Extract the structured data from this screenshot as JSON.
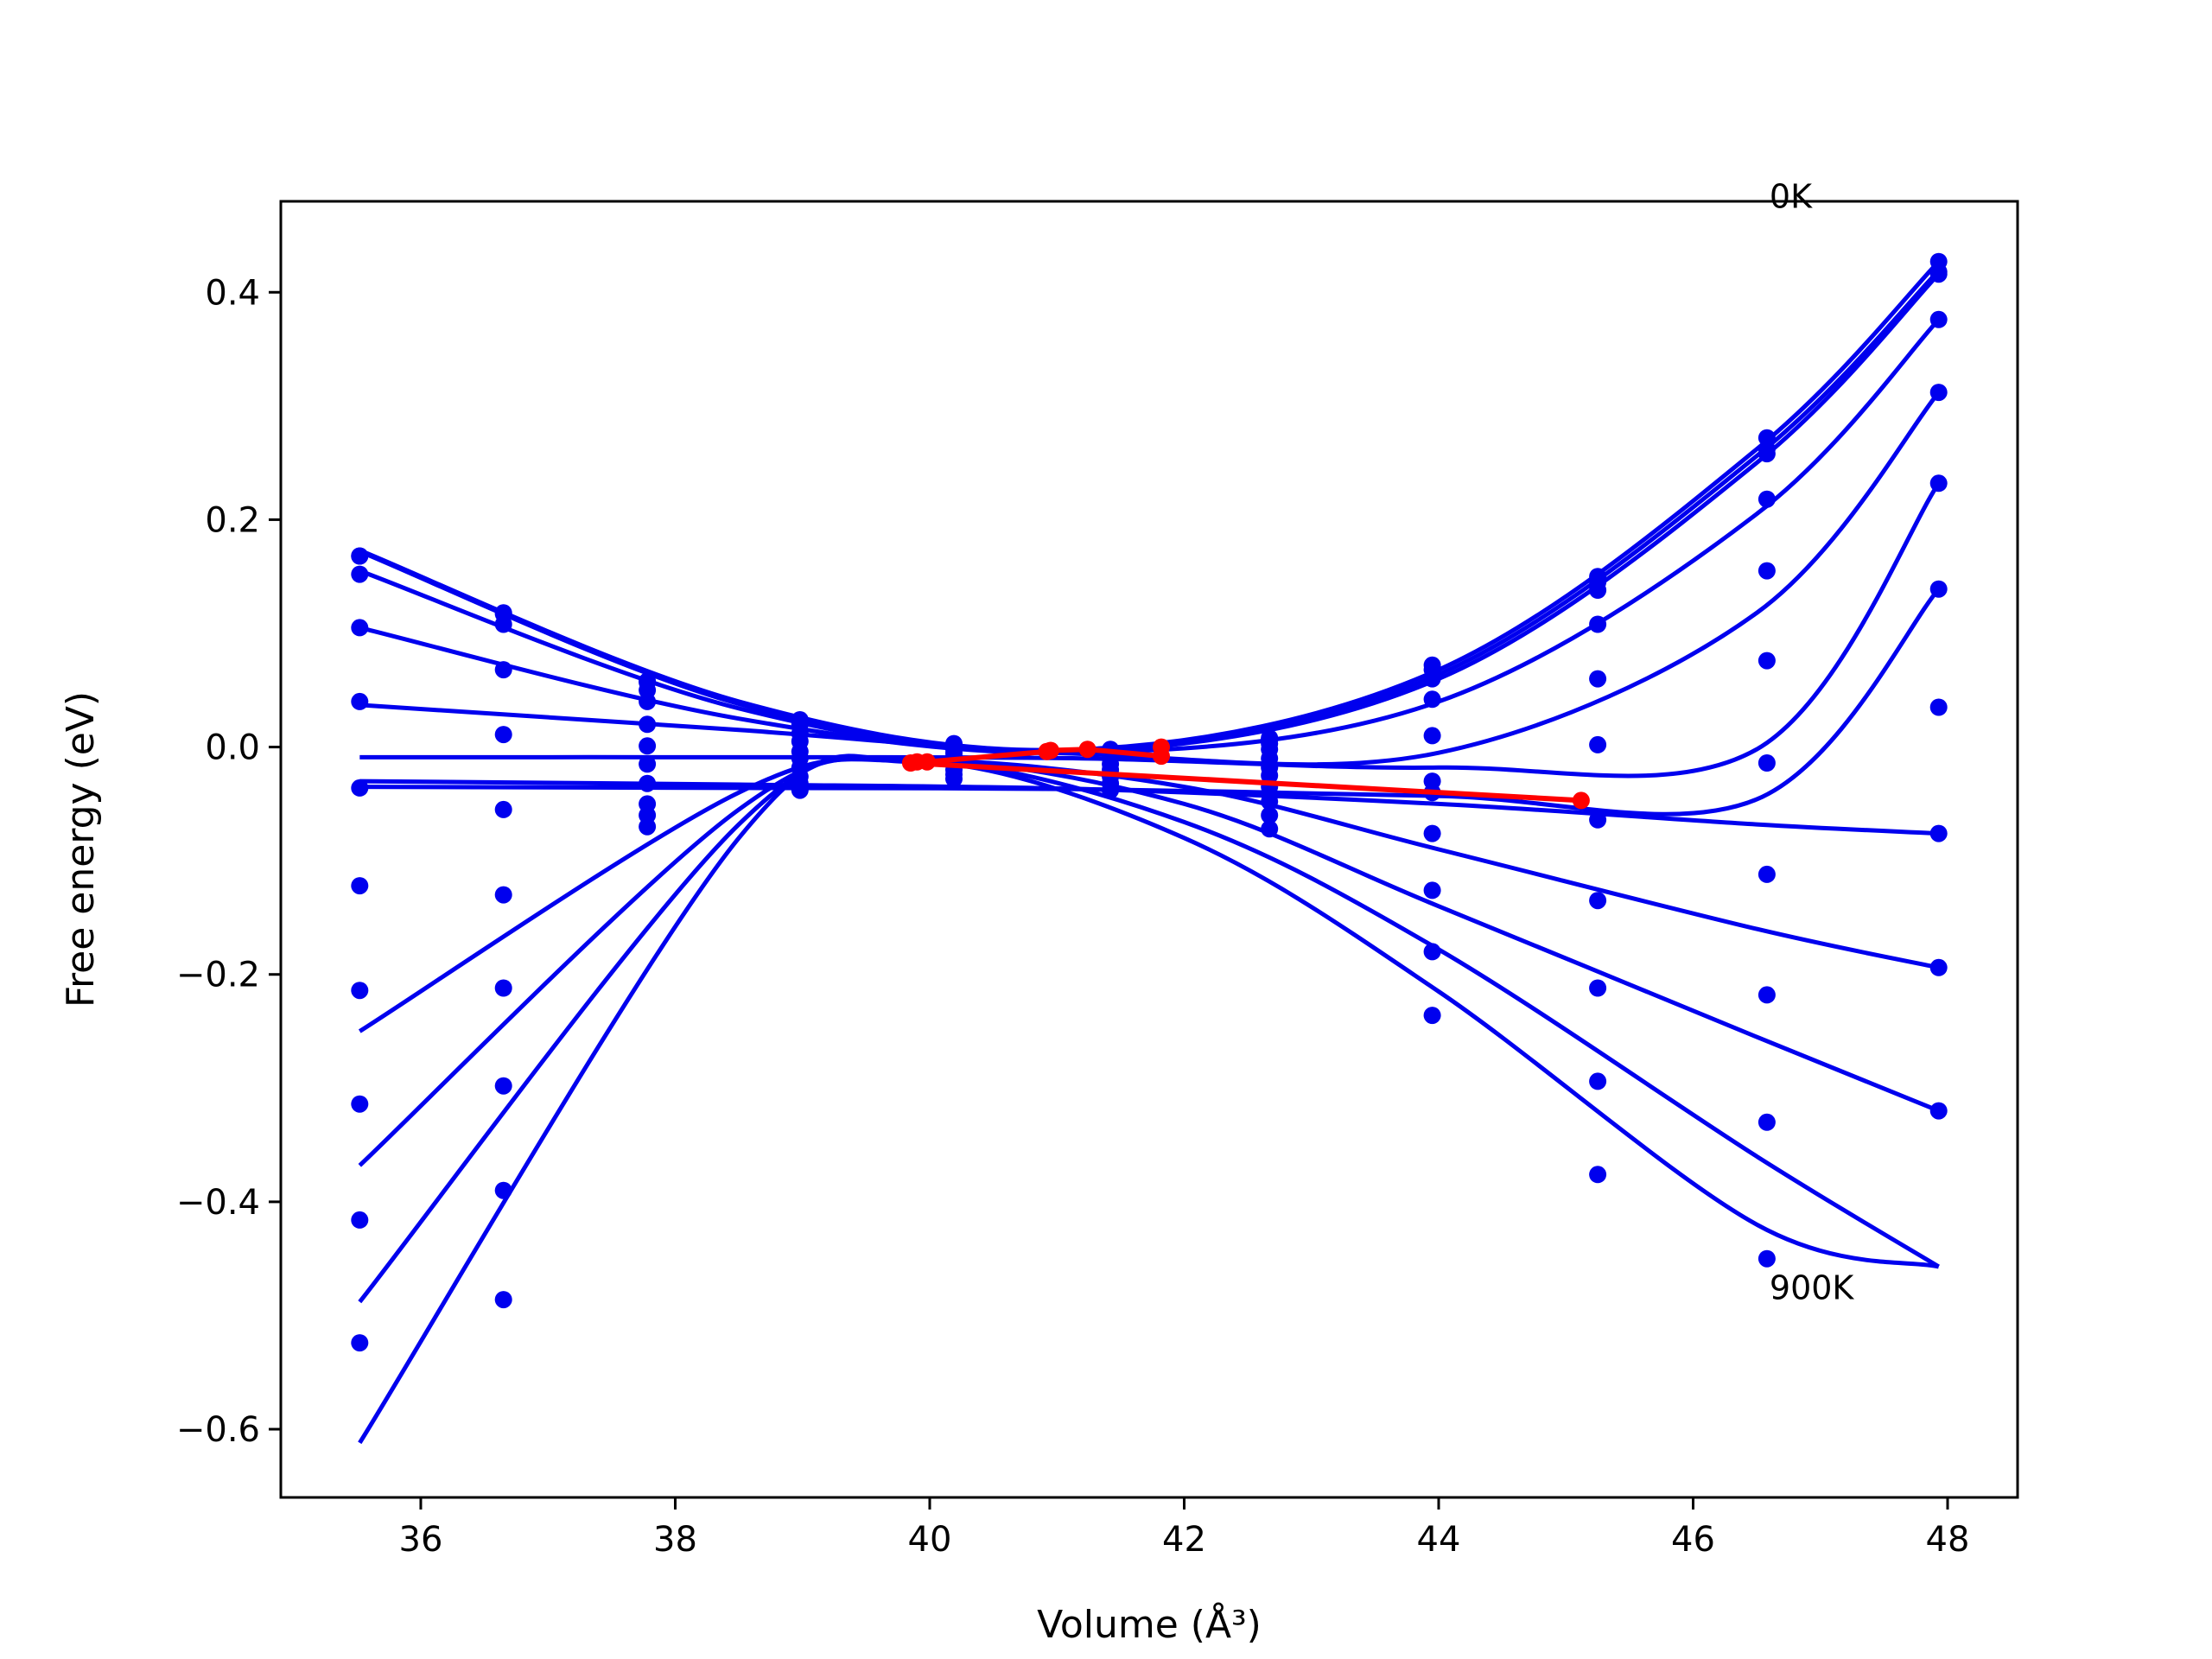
{
  "chart_data": {
    "type": "line",
    "xlabel": "Volume (Å³)",
    "ylabel": "Free energy (eV)",
    "xlim": [
      34.9,
      48.55
    ],
    "ylim": [
      -0.66,
      0.48
    ],
    "xticks": [
      36,
      38,
      40,
      42,
      44,
      46,
      48
    ],
    "yticks": [
      -0.6,
      -0.4,
      -0.2,
      0.0,
      0.2,
      0.4
    ],
    "xtick_labels": [
      "36",
      "38",
      "40",
      "42",
      "44",
      "46",
      "48"
    ],
    "ytick_labels": [
      "−0.6",
      "−0.4",
      "−0.2",
      "0.0",
      "0.2",
      "0.4"
    ],
    "colors": {
      "series": "#0000ee",
      "minimum_path": "#ff0000"
    },
    "annotations": [
      {
        "text": "0K",
        "x": 46.6,
        "y": 0.485
      },
      {
        "text": "900K",
        "x": 46.6,
        "y": -0.475
      }
    ],
    "volumes": [
      35.52,
      36.65,
      37.78,
      38.98,
      40.19,
      41.42,
      42.67,
      43.95,
      45.25,
      46.58,
      47.93
    ],
    "series": [
      {
        "name": "0K",
        "values": [
          0.168,
          0.118,
          0.058,
          0.024,
          0.003,
          -0.002,
          0.008,
          0.072,
          0.15,
          0.272,
          0.427
        ]
      },
      {
        "values": [
          0.168,
          0.117,
          0.057,
          0.023,
          0.002,
          -0.003,
          0.007,
          0.068,
          0.145,
          0.262,
          0.418
        ]
      },
      {
        "values": [
          0.152,
          0.108,
          0.05,
          0.02,
          0.001,
          -0.004,
          0.003,
          0.06,
          0.138,
          0.258,
          0.416
        ]
      },
      {
        "values": [
          0.105,
          0.068,
          0.04,
          0.012,
          -0.002,
          -0.005,
          -0.002,
          0.042,
          0.108,
          0.218,
          0.376
        ]
      },
      {
        "values": [
          0.04,
          0.011,
          0.02,
          0.005,
          -0.005,
          -0.007,
          -0.01,
          0.01,
          0.06,
          0.155,
          0.312
        ]
      },
      {
        "values": [
          -0.036,
          -0.055,
          0.001,
          -0.004,
          -0.008,
          -0.01,
          -0.018,
          -0.03,
          0.002,
          0.076,
          0.232
        ]
      },
      {
        "values": [
          -0.122,
          -0.13,
          -0.015,
          -0.01,
          -0.012,
          -0.015,
          -0.025,
          -0.04,
          -0.064,
          -0.014,
          0.139
        ]
      },
      {
        "values": [
          -0.214,
          -0.212,
          -0.032,
          -0.018,
          -0.015,
          -0.02,
          -0.035,
          -0.076,
          -0.135,
          -0.112,
          0.035
        ]
      },
      {
        "values": [
          -0.314,
          -0.298,
          -0.05,
          -0.026,
          -0.02,
          -0.026,
          -0.048,
          -0.126,
          -0.212,
          -0.218,
          -0.076
        ]
      },
      {
        "values": [
          -0.416,
          -0.39,
          -0.06,
          -0.032,
          -0.024,
          -0.032,
          -0.06,
          -0.18,
          -0.294,
          -0.33,
          -0.194
        ]
      },
      {
        "name": "900K",
        "values": [
          -0.524,
          -0.486,
          -0.07,
          -0.038,
          -0.028,
          -0.038,
          -0.072,
          -0.236,
          -0.376,
          -0.45,
          -0.32
        ]
      }
    ],
    "fits": [
      {
        "x": [
          35.52,
          38.5,
          41.2,
          44.0,
          46.5,
          47.93
        ],
        "y": [
          0.173,
          0.04,
          -0.002,
          0.068,
          0.262,
          0.427
        ]
      },
      {
        "x": [
          35.52,
          38.5,
          41.2,
          44.0,
          46.5,
          47.93
        ],
        "y": [
          0.172,
          0.038,
          -0.003,
          0.064,
          0.256,
          0.419
        ]
      },
      {
        "x": [
          35.52,
          38.5,
          41.2,
          44.0,
          46.5,
          47.93
        ],
        "y": [
          0.155,
          0.034,
          -0.004,
          0.06,
          0.25,
          0.416
        ]
      },
      {
        "x": [
          35.52,
          38.5,
          41.2,
          44.0,
          46.5,
          47.93
        ],
        "y": [
          0.105,
          0.025,
          -0.005,
          0.04,
          0.205,
          0.376
        ]
      },
      {
        "x": [
          35.52,
          38.5,
          41.2,
          44.0,
          46.5,
          47.93
        ],
        "y": [
          0.037,
          0.015,
          -0.006,
          -0.005,
          0.118,
          0.312
        ]
      },
      {
        "x": [
          35.52,
          38.5,
          41.2,
          44.0,
          46.5,
          47.93
        ],
        "y": [
          -0.009,
          -0.009,
          -0.01,
          -0.018,
          -0.002,
          0.232
        ]
      },
      {
        "x": [
          35.52,
          38.5,
          41.2,
          44.0,
          46.5,
          47.93
        ],
        "y": [
          -0.035,
          -0.036,
          -0.037,
          -0.043,
          -0.046,
          0.139
        ]
      },
      {
        "x": [
          35.52,
          38.5,
          41.2,
          44.0,
          46.5,
          47.93
        ],
        "y": [
          -0.03,
          -0.033,
          -0.037,
          -0.05,
          -0.068,
          -0.076
        ]
      },
      {
        "x": [
          35.52,
          38.5,
          39.9,
          42.0,
          44.0,
          46.5,
          47.93
        ],
        "y": [
          -0.25,
          -0.04,
          -0.012,
          -0.035,
          -0.09,
          -0.16,
          -0.194
        ]
      },
      {
        "x": [
          35.52,
          38.5,
          39.9,
          42.0,
          44.0,
          46.5,
          47.93
        ],
        "y": [
          -0.368,
          -0.055,
          -0.012,
          -0.05,
          -0.14,
          -0.255,
          -0.32
        ]
      },
      {
        "x": [
          35.52,
          38.5,
          39.9,
          42.0,
          44.0,
          46.5,
          47.93
        ],
        "y": [
          -0.488,
          -0.068,
          -0.013,
          -0.066,
          -0.178,
          -0.36,
          -0.457
        ]
      },
      {
        "x": [
          35.52,
          38.5,
          39.9,
          42.0,
          44.0,
          46.5,
          47.93
        ],
        "y": [
          -0.612,
          -0.08,
          -0.013,
          -0.08,
          -0.215,
          -0.42,
          -0.457
        ]
      }
    ],
    "minimum_path": {
      "x": [
        41.82,
        41.82,
        41.24,
        40.95,
        40.92,
        39.98,
        39.9,
        39.85,
        45.12
      ],
      "y": [
        0.0,
        -0.008,
        -0.002,
        -0.003,
        -0.004,
        -0.013,
        -0.013,
        -0.014,
        -0.047
      ]
    }
  }
}
